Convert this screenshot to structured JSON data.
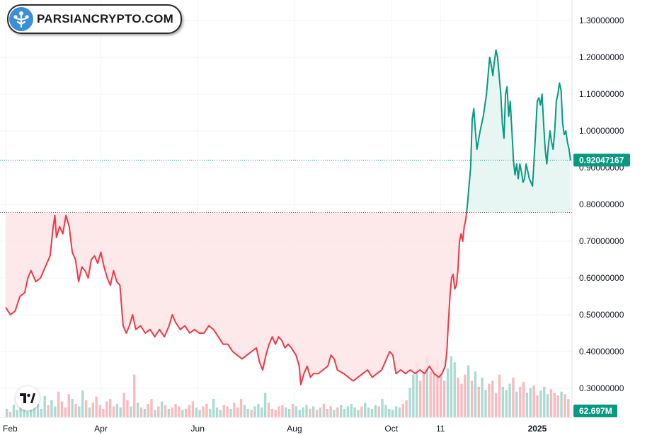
{
  "brand": {
    "name": "PARSIANCRYPTO.COM",
    "logo_icon": "tree-people-icon",
    "watermark_icon": "tradingview-icon"
  },
  "colors": {
    "up": "#089981",
    "down": "#f23645",
    "up_fill": "#e4f5f1",
    "down_fill": "#fde4e6",
    "baseline": "#5d606b"
  },
  "chart_data": {
    "type": "area",
    "title": "",
    "xlabel": "",
    "ylabel": "",
    "baseline_value": 0.778,
    "last_price": 0.92047167,
    "last_price_label": "0.92047167",
    "volume_label": "62.697M",
    "ylim": [
      0.25,
      1.32
    ],
    "yticks": [
      1.3,
      1.2,
      1.1,
      1.0,
      0.9,
      0.8,
      0.7,
      0.6,
      0.5,
      0.4,
      0.3
    ],
    "ytick_labels": [
      "1.30000000",
      "1.20000000",
      "1.10000000",
      "1.00000000",
      "0.90000000",
      "0.80000000",
      "0.70000000",
      "0.60000000",
      "0.50000000",
      "0.40000000",
      "0.30000000"
    ],
    "xlim": [
      "2024-02-01",
      "2025-01-22"
    ],
    "xticks": [
      {
        "date": "2024-02-01",
        "label": "Feb"
      },
      {
        "date": "2024-04-01",
        "label": "Apr"
      },
      {
        "date": "2024-06-01",
        "label": "Jun"
      },
      {
        "date": "2024-08-01",
        "label": "Aug"
      },
      {
        "date": "2024-10-01",
        "label": "Oct"
      },
      {
        "date": "2024-11-01",
        "label": "11"
      },
      {
        "date": "2025-01-01",
        "label": "2025"
      }
    ],
    "series": [
      {
        "values": [
          [
            "2024-02-01",
            0.52
          ],
          [
            "2024-02-04",
            0.5
          ],
          [
            "2024-02-07",
            0.51
          ],
          [
            "2024-02-10",
            0.55
          ],
          [
            "2024-02-13",
            0.56
          ],
          [
            "2024-02-15",
            0.6
          ],
          [
            "2024-02-17",
            0.62
          ],
          [
            "2024-02-20",
            0.59
          ],
          [
            "2024-02-23",
            0.6
          ],
          [
            "2024-02-26",
            0.63
          ],
          [
            "2024-02-29",
            0.66
          ],
          [
            "2024-03-02",
            0.74
          ],
          [
            "2024-03-03",
            0.77
          ],
          [
            "2024-03-04",
            0.71
          ],
          [
            "2024-03-06",
            0.74
          ],
          [
            "2024-03-08",
            0.72
          ],
          [
            "2024-03-10",
            0.77
          ],
          [
            "2024-03-12",
            0.74
          ],
          [
            "2024-03-14",
            0.67
          ],
          [
            "2024-03-16",
            0.65
          ],
          [
            "2024-03-18",
            0.59
          ],
          [
            "2024-03-20",
            0.63
          ],
          [
            "2024-03-22",
            0.62
          ],
          [
            "2024-03-24",
            0.6
          ],
          [
            "2024-03-26",
            0.65
          ],
          [
            "2024-03-28",
            0.66
          ],
          [
            "2024-03-30",
            0.64
          ],
          [
            "2024-04-01",
            0.67
          ],
          [
            "2024-04-03",
            0.63
          ],
          [
            "2024-04-05",
            0.6
          ],
          [
            "2024-04-07",
            0.58
          ],
          [
            "2024-04-09",
            0.62
          ],
          [
            "2024-04-11",
            0.59
          ],
          [
            "2024-04-13",
            0.58
          ],
          [
            "2024-04-15",
            0.47
          ],
          [
            "2024-04-17",
            0.45
          ],
          [
            "2024-04-19",
            0.47
          ],
          [
            "2024-04-21",
            0.5
          ],
          [
            "2024-04-23",
            0.46
          ],
          [
            "2024-04-26",
            0.47
          ],
          [
            "2024-04-29",
            0.45
          ],
          [
            "2024-05-02",
            0.46
          ],
          [
            "2024-05-05",
            0.44
          ],
          [
            "2024-05-08",
            0.46
          ],
          [
            "2024-05-11",
            0.44
          ],
          [
            "2024-05-14",
            0.47
          ],
          [
            "2024-05-16",
            0.5
          ],
          [
            "2024-05-18",
            0.48
          ],
          [
            "2024-05-21",
            0.46
          ],
          [
            "2024-05-24",
            0.47
          ],
          [
            "2024-05-27",
            0.45
          ],
          [
            "2024-05-30",
            0.46
          ],
          [
            "2024-06-02",
            0.45
          ],
          [
            "2024-06-05",
            0.45
          ],
          [
            "2024-06-08",
            0.47
          ],
          [
            "2024-06-11",
            0.46
          ],
          [
            "2024-06-14",
            0.44
          ],
          [
            "2024-06-17",
            0.42
          ],
          [
            "2024-06-20",
            0.42
          ],
          [
            "2024-06-23",
            0.4
          ],
          [
            "2024-06-26",
            0.39
          ],
          [
            "2024-06-29",
            0.38
          ],
          [
            "2024-07-02",
            0.39
          ],
          [
            "2024-07-05",
            0.4
          ],
          [
            "2024-07-08",
            0.41
          ],
          [
            "2024-07-10",
            0.37
          ],
          [
            "2024-07-12",
            0.35
          ],
          [
            "2024-07-14",
            0.39
          ],
          [
            "2024-07-16",
            0.42
          ],
          [
            "2024-07-18",
            0.44
          ],
          [
            "2024-07-20",
            0.42
          ],
          [
            "2024-07-22",
            0.44
          ],
          [
            "2024-07-24",
            0.43
          ],
          [
            "2024-07-26",
            0.41
          ],
          [
            "2024-07-28",
            0.42
          ],
          [
            "2024-07-30",
            0.41
          ],
          [
            "2024-08-02",
            0.39
          ],
          [
            "2024-08-04",
            0.36
          ],
          [
            "2024-08-05",
            0.31
          ],
          [
            "2024-08-07",
            0.34
          ],
          [
            "2024-08-09",
            0.36
          ],
          [
            "2024-08-11",
            0.33
          ],
          [
            "2024-08-13",
            0.34
          ],
          [
            "2024-08-16",
            0.34
          ],
          [
            "2024-08-19",
            0.35
          ],
          [
            "2024-08-22",
            0.36
          ],
          [
            "2024-08-24",
            0.39
          ],
          [
            "2024-08-26",
            0.38
          ],
          [
            "2024-08-28",
            0.35
          ],
          [
            "2024-09-01",
            0.34
          ],
          [
            "2024-09-04",
            0.33
          ],
          [
            "2024-09-07",
            0.32
          ],
          [
            "2024-09-10",
            0.33
          ],
          [
            "2024-09-13",
            0.34
          ],
          [
            "2024-09-16",
            0.35
          ],
          [
            "2024-09-19",
            0.33
          ],
          [
            "2024-09-22",
            0.34
          ],
          [
            "2024-09-25",
            0.35
          ],
          [
            "2024-09-28",
            0.38
          ],
          [
            "2024-09-30",
            0.4
          ],
          [
            "2024-10-02",
            0.39
          ],
          [
            "2024-10-04",
            0.34
          ],
          [
            "2024-10-07",
            0.35
          ],
          [
            "2024-10-10",
            0.34
          ],
          [
            "2024-10-13",
            0.35
          ],
          [
            "2024-10-16",
            0.34
          ],
          [
            "2024-10-19",
            0.35
          ],
          [
            "2024-10-22",
            0.34
          ],
          [
            "2024-10-25",
            0.36
          ],
          [
            "2024-10-28",
            0.34
          ],
          [
            "2024-10-31",
            0.33
          ],
          [
            "2024-11-02",
            0.34
          ],
          [
            "2024-11-04",
            0.36
          ],
          [
            "2024-11-05",
            0.4
          ],
          [
            "2024-11-06",
            0.48
          ],
          [
            "2024-11-07",
            0.55
          ],
          [
            "2024-11-08",
            0.6
          ],
          [
            "2024-11-09",
            0.61
          ],
          [
            "2024-11-10",
            0.57
          ],
          [
            "2024-11-11",
            0.58
          ],
          [
            "2024-11-12",
            0.62
          ],
          [
            "2024-11-13",
            0.7
          ],
          [
            "2024-11-14",
            0.72
          ],
          [
            "2024-11-15",
            0.7
          ],
          [
            "2024-11-16",
            0.74
          ],
          [
            "2024-11-17",
            0.76
          ],
          [
            "2024-11-18",
            0.8
          ],
          [
            "2024-11-19",
            0.85
          ],
          [
            "2024-11-20",
            0.9
          ],
          [
            "2024-11-21",
            1.03
          ],
          [
            "2024-11-22",
            1.06
          ],
          [
            "2024-11-23",
            1.0
          ],
          [
            "2024-11-24",
            0.95
          ],
          [
            "2024-11-26",
            1.0
          ],
          [
            "2024-11-28",
            1.04
          ],
          [
            "2024-11-30",
            1.1
          ],
          [
            "2024-12-02",
            1.2
          ],
          [
            "2024-12-03",
            1.18
          ],
          [
            "2024-12-04",
            1.15
          ],
          [
            "2024-12-05",
            1.19
          ],
          [
            "2024-12-06",
            1.22
          ],
          [
            "2024-12-07",
            1.2
          ],
          [
            "2024-12-08",
            1.15
          ],
          [
            "2024-12-09",
            1.1
          ],
          [
            "2024-12-10",
            1.02
          ],
          [
            "2024-12-11",
            0.98
          ],
          [
            "2024-12-12",
            1.1
          ],
          [
            "2024-12-13",
            1.12
          ],
          [
            "2024-12-14",
            1.04
          ],
          [
            "2024-12-15",
            1.08
          ],
          [
            "2024-12-16",
            1.0
          ],
          [
            "2024-12-17",
            0.92
          ],
          [
            "2024-12-18",
            0.88
          ],
          [
            "2024-12-19",
            0.91
          ],
          [
            "2024-12-20",
            0.87
          ],
          [
            "2024-12-21",
            0.91
          ],
          [
            "2024-12-22",
            0.89
          ],
          [
            "2024-12-23",
            0.86
          ],
          [
            "2024-12-24",
            0.87
          ],
          [
            "2024-12-25",
            0.91
          ],
          [
            "2024-12-26",
            0.89
          ],
          [
            "2024-12-27",
            0.87
          ],
          [
            "2024-12-28",
            0.86
          ],
          [
            "2024-12-29",
            0.85
          ],
          [
            "2024-12-30",
            0.92
          ],
          [
            "2024-12-31",
            1.0
          ],
          [
            "2025-01-01",
            1.08
          ],
          [
            "2025-01-02",
            1.09
          ],
          [
            "2025-01-03",
            1.07
          ],
          [
            "2025-01-04",
            1.1
          ],
          [
            "2025-01-05",
            1.02
          ],
          [
            "2025-01-06",
            0.95
          ],
          [
            "2025-01-07",
            0.91
          ],
          [
            "2025-01-08",
            0.96
          ],
          [
            "2025-01-09",
            1.0
          ],
          [
            "2025-01-10",
            0.97
          ],
          [
            "2025-01-11",
            0.95
          ],
          [
            "2025-01-12",
            1.0
          ],
          [
            "2025-01-13",
            1.08
          ],
          [
            "2025-01-14",
            1.1
          ],
          [
            "2025-01-15",
            1.13
          ],
          [
            "2025-01-16",
            1.11
          ],
          [
            "2025-01-17",
            1.02
          ],
          [
            "2025-01-18",
            0.99
          ],
          [
            "2025-01-19",
            1.0
          ],
          [
            "2025-01-20",
            0.97
          ],
          [
            "2025-01-21",
            0.95
          ],
          [
            "2025-01-22",
            0.92
          ]
        ]
      }
    ],
    "volume": {
      "max": 110,
      "values": [
        14,
        9,
        20,
        12,
        18,
        25,
        10,
        16,
        30,
        22,
        14,
        35,
        20,
        28,
        18,
        42,
        26,
        16,
        38,
        30,
        22,
        18,
        44,
        28,
        16,
        24,
        34,
        20,
        14,
        26,
        30,
        18,
        22,
        16,
        40,
        28,
        18,
        70,
        24,
        16,
        14,
        22,
        30,
        12,
        18,
        26,
        20,
        14,
        16,
        22,
        18,
        12,
        14,
        20,
        26,
        16,
        12,
        18,
        22,
        14,
        30,
        16,
        12,
        20,
        18,
        14,
        24,
        16,
        30,
        20,
        14,
        12,
        18,
        22,
        16,
        40,
        24,
        14,
        12,
        18,
        20,
        16,
        14,
        22,
        18,
        12,
        16,
        20,
        14,
        18,
        12,
        16,
        22,
        14,
        18,
        12,
        16,
        20,
        14,
        18,
        22,
        16,
        12,
        18,
        24,
        16,
        14,
        20,
        18,
        30,
        20,
        14,
        12,
        18,
        16,
        22,
        28,
        48,
        70,
        90,
        60,
        80,
        100,
        75,
        85,
        95,
        70,
        60,
        80,
        100,
        90,
        65,
        55,
        70,
        85,
        60,
        75,
        50,
        65,
        45,
        55,
        60,
        40,
        70,
        50,
        45,
        55,
        65,
        42,
        50,
        58,
        40,
        48,
        52,
        36,
        44,
        50,
        38,
        46,
        40,
        36,
        42,
        38,
        30
      ]
    }
  }
}
